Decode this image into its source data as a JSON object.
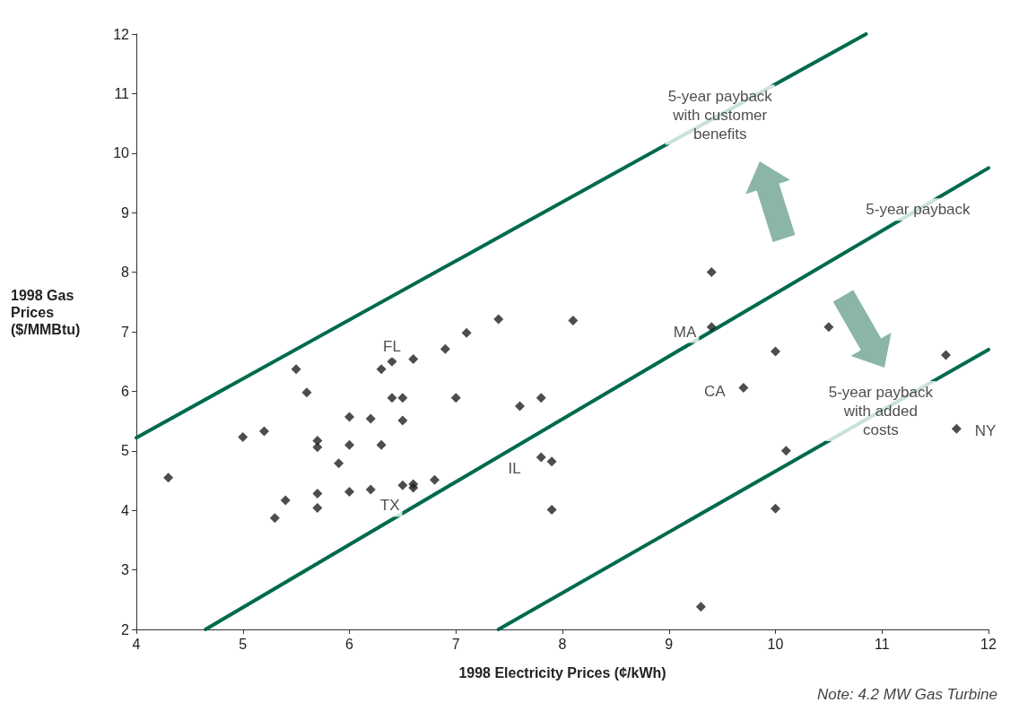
{
  "chart_data": {
    "type": "scatter",
    "xlabel": "1998 Electricity Prices (¢/kWh)",
    "ylabel": "1998 Gas Prices ($/MMBtu)",
    "xlim": [
      4,
      12
    ],
    "xticks": [
      4,
      5,
      6,
      7,
      8,
      9,
      10,
      11,
      12
    ],
    "ylim": [
      2,
      12
    ],
    "yticks": [
      2,
      3,
      4,
      5,
      6,
      7,
      8,
      9,
      10,
      11,
      12
    ],
    "grid": false,
    "legend": false,
    "marker": "diamond",
    "series": [
      {
        "color": "#231f20",
        "x": [
          4.3,
          5.0,
          5.2,
          5.3,
          5.4,
          5.5,
          5.6,
          5.7,
          5.7,
          5.7,
          5.7,
          5.9,
          6.0,
          6.0,
          6.0,
          6.2,
          6.2,
          6.3,
          6.3,
          6.4,
          6.4,
          6.5,
          6.5,
          6.5,
          6.6,
          6.6,
          6.6,
          6.8,
          6.9,
          7.0,
          7.1,
          7.4,
          7.6,
          7.8,
          7.8,
          7.9,
          7.9,
          8.1,
          9.3,
          9.4,
          9.4,
          9.7,
          10.0,
          10.0,
          10.1,
          10.5,
          11.6,
          11.7
        ],
        "values": [
          4.55,
          5.23,
          5.33,
          3.87,
          4.17,
          6.37,
          5.98,
          5.17,
          5.06,
          4.28,
          4.04,
          4.79,
          5.57,
          5.1,
          4.31,
          5.54,
          4.35,
          6.37,
          5.1,
          6.5,
          5.89,
          5.89,
          5.51,
          4.42,
          6.54,
          4.44,
          4.38,
          4.51,
          6.71,
          5.89,
          6.98,
          7.21,
          5.75,
          5.89,
          4.89,
          4.82,
          4.01,
          7.19,
          2.38,
          8.0,
          7.08,
          6.06,
          6.67,
          4.03,
          5.0,
          7.08,
          6.61,
          5.37
        ]
      },
      {
        "type": "line",
        "name": "5-year payback\nwith customer\nbenefits",
        "marker": "none",
        "color": "#006a4e",
        "line_style": "solid",
        "x": [
          4,
          10.85
        ],
        "values": [
          5.22,
          12
        ]
      },
      {
        "type": "line",
        "name": "5-year payback",
        "marker": "none",
        "color": "#006a4e",
        "line_style": "solid",
        "x": [
          4.65,
          12
        ],
        "values": [
          2,
          9.75
        ]
      },
      {
        "type": "line",
        "name": "5-year payback\nwith added\ncosts",
        "marker": "none",
        "color": "#006a4e",
        "line_style": "solid",
        "x": [
          7.4,
          12
        ],
        "values": [
          2,
          6.7
        ]
      }
    ],
    "annotations": [
      {
        "text": "FL",
        "x": 6.4,
        "y": 6.75
      },
      {
        "text": "TX",
        "x": 6.38,
        "y": 4.08
      },
      {
        "text": "IL",
        "x": 7.55,
        "y": 4.7
      },
      {
        "text": "MA",
        "x": 9.15,
        "y": 7.0
      },
      {
        "text": "CA",
        "x": 9.43,
        "y": 6.0
      },
      {
        "text": "NY",
        "x": 11.97,
        "y": 5.33
      },
      "Note: 4.2 MW Gas Turbine"
    ]
  }
}
